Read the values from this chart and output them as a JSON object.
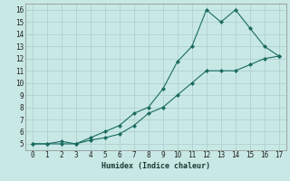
{
  "xlabel": "Humidex (Indice chaleur)",
  "background_color": "#c8e8e5",
  "grid_color_major": "#aaccca",
  "grid_color_minor": "#c0dedd",
  "line_color": "#1a6b60",
  "xlim": [
    -0.5,
    17.5
  ],
  "ylim": [
    4.5,
    16.5
  ],
  "x": [
    0,
    1,
    2,
    3,
    4,
    5,
    6,
    7,
    8,
    9,
    10,
    11,
    12,
    13,
    14,
    15,
    16,
    17
  ],
  "yu": [
    5.0,
    5.0,
    5.2,
    5.0,
    5.5,
    6.0,
    6.5,
    7.5,
    8.0,
    9.5,
    11.75,
    13.0,
    16.0,
    15.0,
    16.0,
    14.5,
    13.0,
    12.2
  ],
  "yl": [
    5.0,
    5.0,
    5.0,
    5.0,
    5.3,
    5.5,
    5.8,
    6.5,
    7.5,
    8.0,
    9.0,
    10.0,
    11.0,
    11.0,
    11.0,
    11.5,
    12.0,
    12.2
  ],
  "xticks": [
    0,
    1,
    2,
    3,
    4,
    5,
    6,
    7,
    8,
    9,
    10,
    11,
    12,
    13,
    14,
    15,
    16,
    17
  ],
  "yticks": [
    5,
    6,
    7,
    8,
    9,
    10,
    11,
    12,
    13,
    14,
    15,
    16
  ]
}
